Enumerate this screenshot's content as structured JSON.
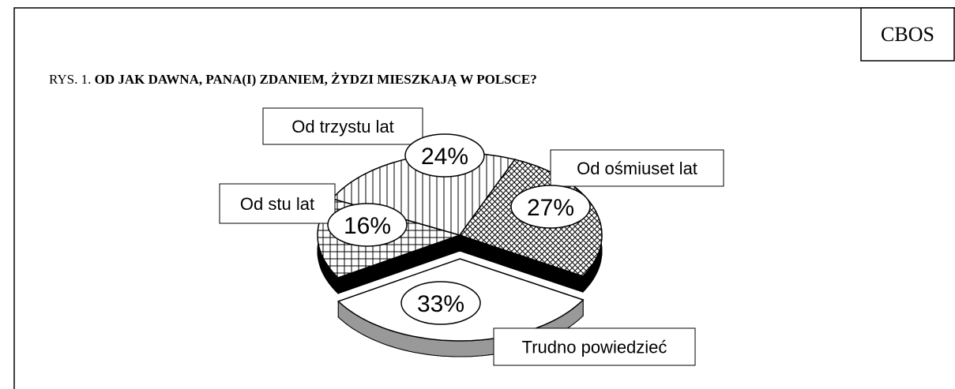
{
  "chart_data": {
    "type": "pie",
    "source": "CBOS",
    "figure_label": "RYS. 1.",
    "title": "OD JAK DAWNA, PANA(I) ZDANIEM, ŻYDZI MIESZKAJĄ W  POLSCE?",
    "categories": [
      "Trudno powiedzieć",
      "Od stu lat",
      "Od trzystu lat",
      "Od ośmiuset lat"
    ],
    "values": [
      33,
      16,
      24,
      27
    ],
    "value_labels": [
      "33%",
      "16%",
      "24%",
      "27%"
    ],
    "patterns": [
      "none",
      "grid",
      "vertical",
      "diagonal-cross"
    ],
    "side_colors": [
      "#999999",
      "#000000",
      "#000000",
      "#000000"
    ],
    "explode": [
      1,
      0,
      0,
      0
    ]
  }
}
